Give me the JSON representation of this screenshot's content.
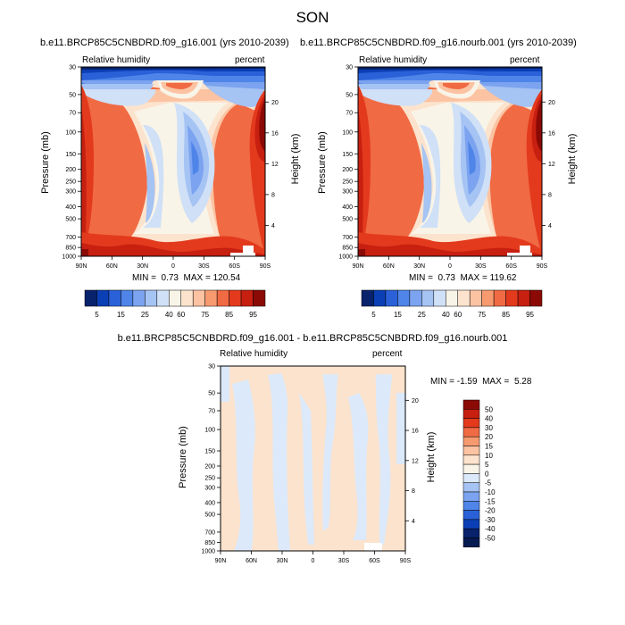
{
  "figure_title": "SON",
  "chart_data": [
    {
      "type": "heatmap",
      "title": "b.e11.BRCP85C5CNBDRD.f09_g16.001 (yrs 2010-2039)",
      "left_label": "Relative humidity",
      "right_label": "percent",
      "xlabel": "",
      "ylabel": "Pressure (mb)",
      "y2label": "Height (km)",
      "x_ticks": [
        "90N",
        "60N",
        "30N",
        "0",
        "30S",
        "60S",
        "90S"
      ],
      "y_ticks": [
        "30",
        "50",
        "70",
        "100",
        "150",
        "200",
        "250",
        "300",
        "400",
        "500",
        "700",
        "850",
        "1000"
      ],
      "y_ticks_numeric": [
        30,
        50,
        70,
        100,
        150,
        200,
        250,
        300,
        400,
        500,
        700,
        850,
        1000
      ],
      "y2_ticks": [
        "20",
        "16",
        "12",
        "8",
        "4"
      ],
      "ylim": [
        1000,
        30
      ],
      "min_label": "MIN =",
      "min_value": "0.73",
      "max_label": "MAX =",
      "max_value": "120.54",
      "colorbar_orientation": "horizontal",
      "colorbar_labels": [
        "5",
        "15",
        "25",
        "40",
        "60",
        "75",
        "85",
        "95"
      ],
      "colorbar_colors": [
        "#08226b",
        "#0b3fb5",
        "#2a61d8",
        "#4f85e8",
        "#7ba3ef",
        "#a5c3f3",
        "#cfe0f7",
        "#f9f4e8",
        "#fce3cd",
        "#fbc3a2",
        "#f79a70",
        "#f06a44",
        "#e33a1d",
        "#c71f10",
        "#8b0a05"
      ],
      "description_zones": [
        "upper-troposphere dry",
        "polar surface moist"
      ]
    },
    {
      "type": "heatmap",
      "title": "b.e11.BRCP85C5CNBDRD.f09_g16.nourb.001 (yrs 2010-2039)",
      "left_label": "Relative humidity",
      "right_label": "percent",
      "xlabel": "",
      "ylabel": "Pressure (mb)",
      "y2label": "Height (km)",
      "x_ticks": [
        "90N",
        "60N",
        "30N",
        "0",
        "30S",
        "60S",
        "90S"
      ],
      "y_ticks": [
        "30",
        "50",
        "70",
        "100",
        "150",
        "200",
        "250",
        "300",
        "400",
        "500",
        "700",
        "850",
        "1000"
      ],
      "y_ticks_numeric": [
        30,
        50,
        70,
        100,
        150,
        200,
        250,
        300,
        400,
        500,
        700,
        850,
        1000
      ],
      "y2_ticks": [
        "20",
        "16",
        "12",
        "8",
        "4"
      ],
      "ylim": [
        1000,
        30
      ],
      "min_label": "MIN =",
      "min_value": "0.73",
      "max_label": "MAX =",
      "max_value": "119.62",
      "colorbar_orientation": "horizontal",
      "colorbar_labels": [
        "5",
        "15",
        "25",
        "40",
        "60",
        "75",
        "85",
        "95"
      ],
      "colorbar_colors": [
        "#08226b",
        "#0b3fb5",
        "#2a61d8",
        "#4f85e8",
        "#7ba3ef",
        "#a5c3f3",
        "#cfe0f7",
        "#f9f4e8",
        "#fce3cd",
        "#fbc3a2",
        "#f79a70",
        "#f06a44",
        "#e33a1d",
        "#c71f10",
        "#8b0a05"
      ],
      "description_zones": []
    },
    {
      "type": "heatmap",
      "title": "b.e11.BRCP85C5CNBDRD.f09_g16.001 - b.e11.BRCP85C5CNBDRD.f09_g16.nourb.001",
      "left_label": "Relative humidity",
      "right_label": "percent",
      "xlabel": "",
      "ylabel": "Pressure (mb)",
      "y2label": "Height (km)",
      "x_ticks": [
        "90N",
        "60N",
        "30N",
        "0",
        "30S",
        "60S",
        "90S"
      ],
      "y_ticks": [
        "30",
        "50",
        "70",
        "100",
        "150",
        "200",
        "250",
        "300",
        "400",
        "500",
        "700",
        "850",
        "1000"
      ],
      "y_ticks_numeric": [
        30,
        50,
        70,
        100,
        150,
        200,
        250,
        300,
        400,
        500,
        700,
        850,
        1000
      ],
      "y2_ticks": [
        "20",
        "16",
        "12",
        "8",
        "4"
      ],
      "ylim": [
        1000,
        30
      ],
      "min_label": "MIN =",
      "min_value": "-1.59",
      "max_label": "MAX =",
      "max_value": "5.28",
      "colorbar_orientation": "vertical",
      "colorbar_labels": [
        "50",
        "40",
        "30",
        "20",
        "15",
        "10",
        "5",
        "0",
        "-5",
        "-10",
        "-15",
        "-20",
        "-30",
        "-40",
        "-50"
      ],
      "colorbar_colors": [
        "#8b0a05",
        "#c71f10",
        "#e33a1d",
        "#f06a44",
        "#f79a70",
        "#fbc3a2",
        "#fce3cd",
        "#f9f4e8",
        "#dbe9fa",
        "#a5c3f3",
        "#7ba3ef",
        "#4f85e8",
        "#2a61d8",
        "#0b3fb5",
        "#08226b",
        "#061a52"
      ]
    }
  ]
}
